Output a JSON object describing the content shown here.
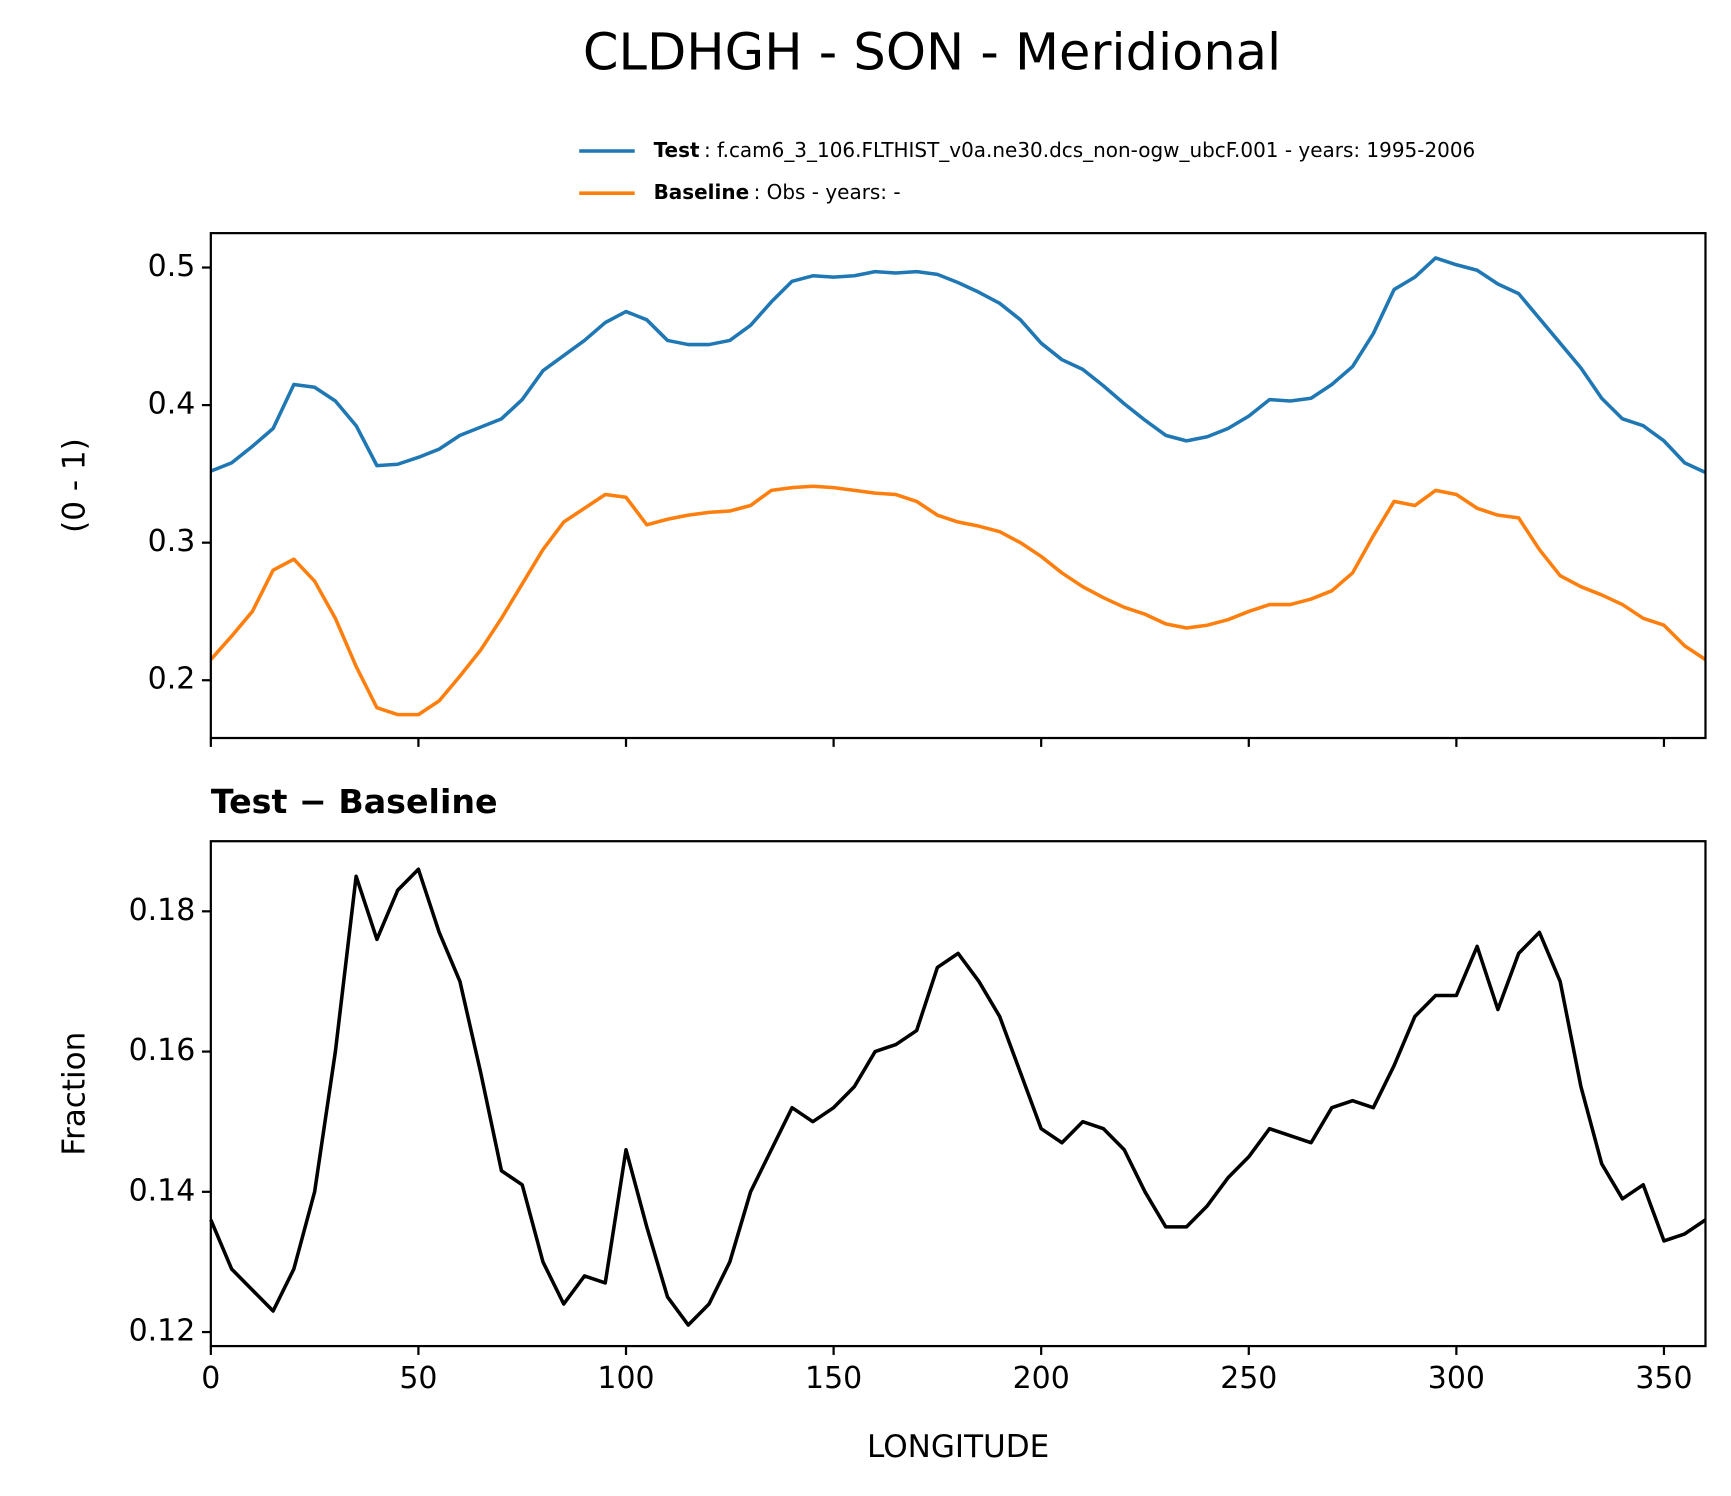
{
  "title": "CLDHGH - SON - Meridional",
  "chart_data": [
    {
      "type": "line",
      "ylabel": "(0 - 1)",
      "x": [
        0,
        5,
        10,
        15,
        20,
        25,
        30,
        35,
        40,
        45,
        50,
        55,
        60,
        65,
        70,
        75,
        80,
        85,
        90,
        95,
        100,
        105,
        110,
        115,
        120,
        125,
        130,
        135,
        140,
        145,
        150,
        155,
        160,
        165,
        170,
        175,
        180,
        185,
        190,
        195,
        200,
        205,
        210,
        215,
        220,
        225,
        230,
        235,
        240,
        245,
        250,
        255,
        260,
        265,
        270,
        275,
        280,
        285,
        290,
        295,
        300,
        305,
        310,
        315,
        320,
        325,
        330,
        335,
        340,
        345,
        350,
        355,
        360
      ],
      "series": [
        {
          "name": "Test",
          "description": ": f.cam6_3_106.FLTHIST_v0a.ne30.dcs_non-ogw_ubcF.001 - years: 1995-2006",
          "color": "#1f77b4",
          "values": [
            0.352,
            0.358,
            0.37,
            0.383,
            0.415,
            0.413,
            0.403,
            0.385,
            0.356,
            0.357,
            0.362,
            0.368,
            0.378,
            0.384,
            0.39,
            0.404,
            0.425,
            0.436,
            0.447,
            0.46,
            0.468,
            0.462,
            0.447,
            0.444,
            0.444,
            0.447,
            0.458,
            0.475,
            0.49,
            0.494,
            0.493,
            0.494,
            0.497,
            0.496,
            0.497,
            0.495,
            0.489,
            0.482,
            0.474,
            0.462,
            0.445,
            0.433,
            0.426,
            0.414,
            0.401,
            0.389,
            0.378,
            0.374,
            0.377,
            0.383,
            0.392,
            0.404,
            0.403,
            0.405,
            0.415,
            0.428,
            0.452,
            0.484,
            0.493,
            0.507,
            0.502,
            0.498,
            0.488,
            0.481,
            0.463,
            0.445,
            0.427,
            0.405,
            0.39,
            0.385,
            0.374,
            0.358,
            0.351
          ]
        },
        {
          "name": "Baseline",
          "description": ": Obs - years: -",
          "color": "#ff7f0e",
          "values": [
            0.215,
            0.232,
            0.25,
            0.28,
            0.288,
            0.272,
            0.245,
            0.21,
            0.18,
            0.175,
            0.175,
            0.185,
            0.203,
            0.222,
            0.245,
            0.27,
            0.295,
            0.315,
            0.325,
            0.335,
            0.333,
            0.313,
            0.317,
            0.32,
            0.322,
            0.323,
            0.327,
            0.338,
            0.34,
            0.341,
            0.34,
            0.338,
            0.336,
            0.335,
            0.33,
            0.32,
            0.315,
            0.312,
            0.308,
            0.3,
            0.29,
            0.278,
            0.268,
            0.26,
            0.253,
            0.248,
            0.241,
            0.238,
            0.24,
            0.244,
            0.25,
            0.255,
            0.255,
            0.259,
            0.265,
            0.278,
            0.305,
            0.33,
            0.327,
            0.338,
            0.335,
            0.325,
            0.32,
            0.318,
            0.295,
            0.276,
            0.268,
            0.262,
            0.255,
            0.245,
            0.24,
            0.225,
            0.215
          ]
        }
      ],
      "xlim": [
        0,
        360
      ],
      "xticks": [
        0,
        50,
        100,
        150,
        200,
        250,
        300,
        350
      ],
      "ylim": [
        0.158,
        0.525
      ],
      "yticks": [
        0.2,
        0.3,
        0.4,
        0.5
      ]
    },
    {
      "type": "line",
      "title": "Test − Baseline",
      "xlabel": "LONGITUDE",
      "ylabel": "Fraction",
      "x": [
        0,
        5,
        10,
        15,
        20,
        25,
        30,
        35,
        40,
        45,
        50,
        55,
        60,
        65,
        70,
        75,
        80,
        85,
        90,
        95,
        100,
        105,
        110,
        115,
        120,
        125,
        130,
        135,
        140,
        145,
        150,
        155,
        160,
        165,
        170,
        175,
        180,
        185,
        190,
        195,
        200,
        205,
        210,
        215,
        220,
        225,
        230,
        235,
        240,
        245,
        250,
        255,
        260,
        265,
        270,
        275,
        280,
        285,
        290,
        295,
        300,
        305,
        310,
        315,
        320,
        325,
        330,
        335,
        340,
        345,
        350,
        355,
        360
      ],
      "series": [
        {
          "color": "#000000",
          "values": [
            0.136,
            0.129,
            0.126,
            0.123,
            0.129,
            0.14,
            0.16,
            0.185,
            0.176,
            0.183,
            0.186,
            0.177,
            0.17,
            0.157,
            0.143,
            0.141,
            0.13,
            0.124,
            0.128,
            0.127,
            0.146,
            0.135,
            0.125,
            0.121,
            0.124,
            0.13,
            0.14,
            0.146,
            0.152,
            0.15,
            0.152,
            0.155,
            0.16,
            0.161,
            0.163,
            0.172,
            0.174,
            0.17,
            0.165,
            0.157,
            0.149,
            0.147,
            0.15,
            0.149,
            0.146,
            0.14,
            0.135,
            0.135,
            0.138,
            0.142,
            0.145,
            0.149,
            0.148,
            0.147,
            0.152,
            0.153,
            0.152,
            0.158,
            0.165,
            0.168,
            0.168,
            0.175,
            0.166,
            0.174,
            0.177,
            0.17,
            0.155,
            0.144,
            0.139,
            0.141,
            0.133,
            0.134,
            0.136
          ]
        }
      ],
      "xlim": [
        0,
        360
      ],
      "xticks": [
        0,
        50,
        100,
        150,
        200,
        250,
        300,
        350
      ],
      "ylim": [
        0.118,
        0.19
      ],
      "yticks": [
        0.12,
        0.14,
        0.16,
        0.18
      ]
    }
  ]
}
